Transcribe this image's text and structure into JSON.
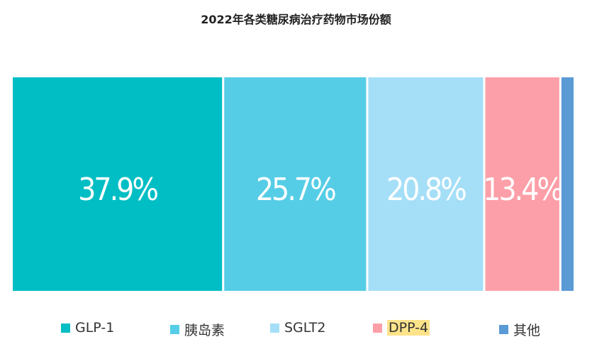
{
  "chart_data": {
    "type": "bar",
    "subtype": "100%-stacked-horizontal",
    "title": "2022年各类糖尿病治疗药物市场份额",
    "categories": [
      "GLP-1",
      "胰岛素",
      "SGLT2",
      "DPP-4",
      "其他"
    ],
    "values": [
      37.9,
      25.7,
      20.8,
      13.4,
      2.2
    ],
    "data_labels": [
      "37.9%",
      "25.7%",
      "20.8%",
      "13.4%",
      ""
    ],
    "colors": [
      "#00bec4",
      "#56cde6",
      "#a5dff7",
      "#fd9fa8",
      "#5a9ad5"
    ],
    "legend_position": "bottom",
    "legend_highlight": "DPP-4",
    "xlabel": "",
    "ylabel": "",
    "unit": "%"
  }
}
